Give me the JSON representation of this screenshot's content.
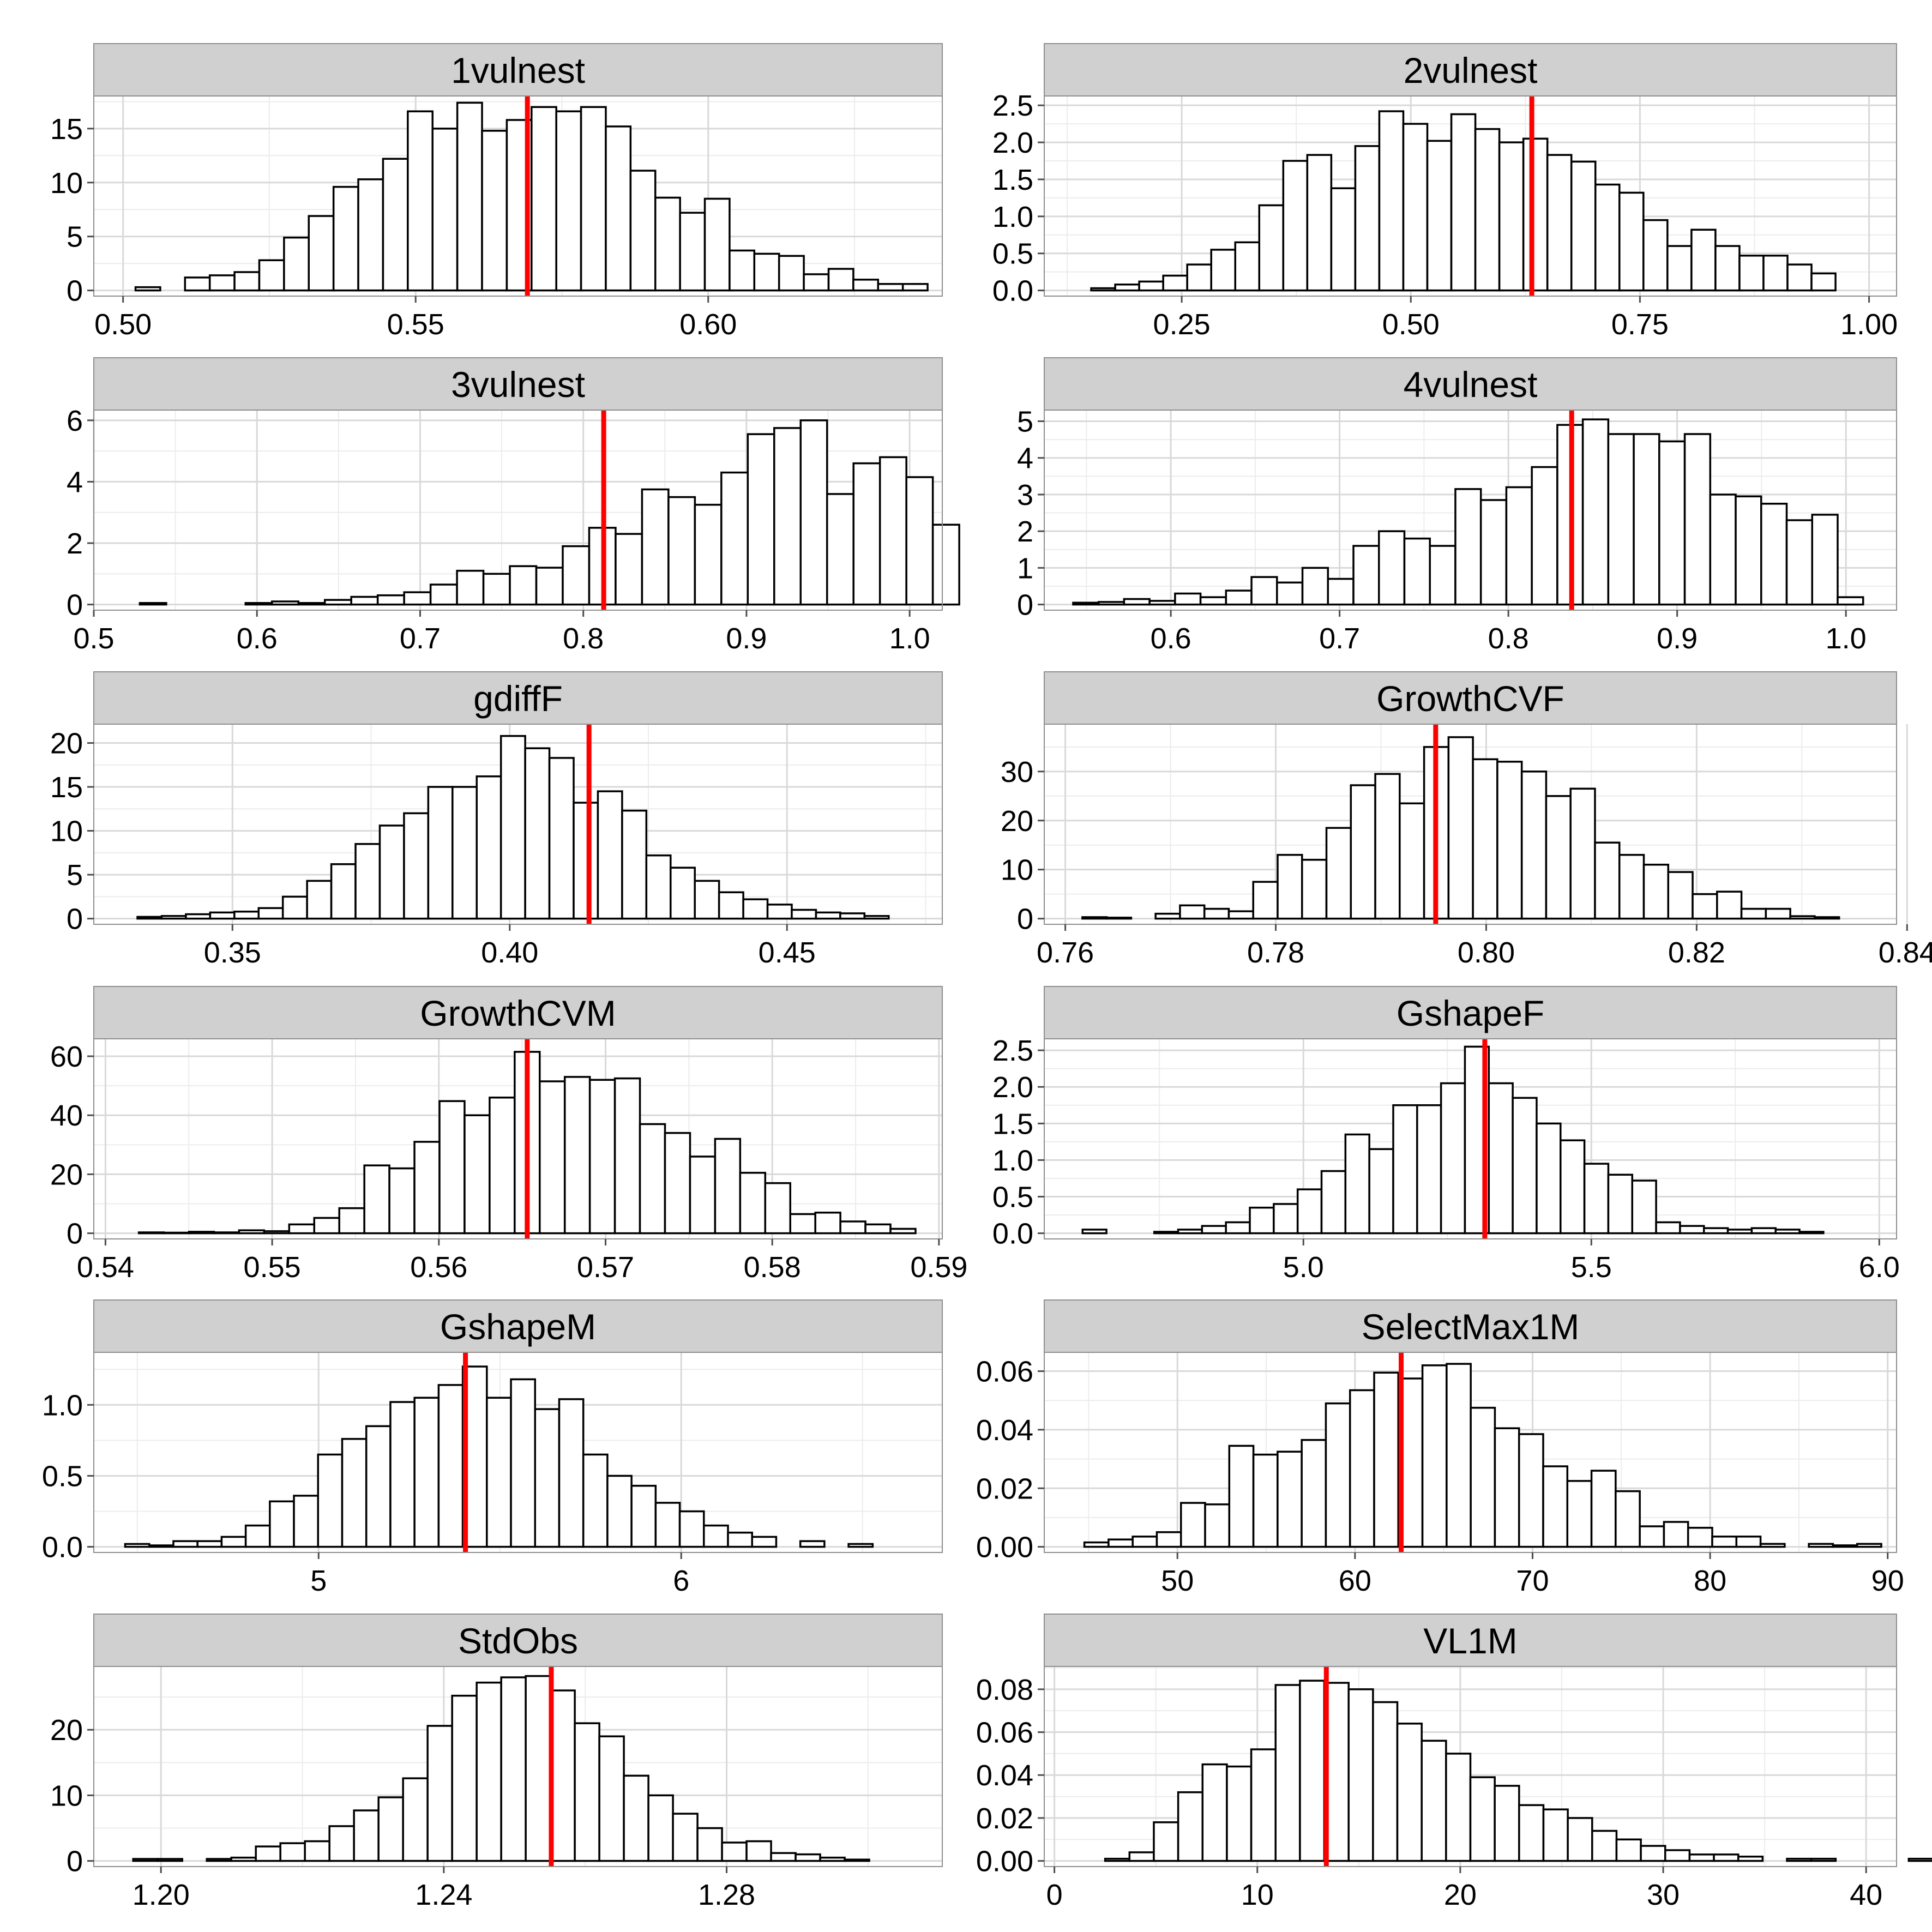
{
  "chart_data": [
    {
      "title": "1vulnest",
      "type": "bar",
      "xlim": [
        0.495,
        0.64
      ],
      "ylim": [
        0,
        17.5
      ],
      "xticks": [
        0.5,
        0.55,
        0.6
      ],
      "yticks": [
        0,
        5,
        10,
        15
      ],
      "xdecimals": 2,
      "ydecimals": 0,
      "bin_start": 0.4979,
      "bin_width": 0.00423,
      "marker": 0.5691,
      "values": [
        0,
        0.3,
        0,
        1.2,
        1.4,
        1.7,
        2.8,
        4.9,
        6.9,
        9.6,
        10.3,
        12.2,
        16.6,
        15.0,
        17.4,
        14.8,
        15.8,
        17.0,
        16.6,
        17.0,
        15.2,
        11.1,
        8.6,
        7.2,
        8.5,
        3.7,
        3.4,
        3.2,
        1.5,
        2.0,
        1.0,
        0.6,
        0.6,
        0
      ]
    },
    {
      "title": "2vulnest",
      "type": "bar",
      "xlim": [
        0.1,
        1.03
      ],
      "ylim": [
        0,
        2.55
      ],
      "xticks": [
        0.25,
        0.5,
        0.75,
        1.0
      ],
      "yticks": [
        0.0,
        0.5,
        1.0,
        1.5,
        2.0,
        2.5
      ],
      "xdecimals": 2,
      "ydecimals": 1,
      "bin_start": 0.125,
      "bin_width": 0.0262,
      "marker": 0.632,
      "values": [
        0,
        0.03,
        0.08,
        0.12,
        0.2,
        0.35,
        0.55,
        0.65,
        1.15,
        1.75,
        1.83,
        1.38,
        1.95,
        2.42,
        2.25,
        2.02,
        2.38,
        2.18,
        2.0,
        2.05,
        1.83,
        1.74,
        1.43,
        1.32,
        0.95,
        0.6,
        0.82,
        0.6,
        0.47,
        0.47,
        0.35,
        0.23,
        0
      ]
    },
    {
      "title": "3vulnest",
      "type": "bar",
      "xlim": [
        0.5,
        1.02
      ],
      "ylim": [
        0,
        6.15
      ],
      "xticks": [
        0.5,
        0.6,
        0.7,
        0.8,
        0.9,
        1.0
      ],
      "yticks": [
        0,
        2,
        4,
        6
      ],
      "xdecimals": 1,
      "ydecimals": 0,
      "bin_start": 0.512,
      "bin_width": 0.0162,
      "marker": 0.8125,
      "values": [
        0,
        0.05,
        0,
        0,
        0,
        0.05,
        0.1,
        0.05,
        0.15,
        0.25,
        0.3,
        0.4,
        0.65,
        1.1,
        1.0,
        1.25,
        1.2,
        1.9,
        2.5,
        2.3,
        3.75,
        3.5,
        3.25,
        4.3,
        5.55,
        5.75,
        6.0,
        3.6,
        4.6,
        4.8,
        4.15,
        2.6,
        0
      ]
    },
    {
      "title": "4vulnest",
      "type": "bar",
      "xlim": [
        0.525,
        1.03
      ],
      "ylim": [
        0,
        5.15
      ],
      "xticks": [
        0.6,
        0.7,
        0.8,
        0.9,
        1.0
      ],
      "yticks": [
        0,
        1,
        2,
        3,
        4,
        5
      ],
      "xdecimals": 1,
      "ydecimals": 0,
      "bin_start": 0.527,
      "bin_width": 0.0151,
      "marker": 0.8375,
      "values": [
        0,
        0.05,
        0.07,
        0.15,
        0.1,
        0.3,
        0.2,
        0.38,
        0.75,
        0.6,
        1.0,
        0.7,
        1.6,
        2.0,
        1.8,
        1.6,
        3.15,
        2.85,
        3.2,
        3.75,
        4.9,
        5.05,
        4.65,
        4.65,
        4.45,
        4.65,
        3.0,
        2.95,
        2.75,
        2.3,
        2.45,
        0.2,
        0
      ]
    },
    {
      "title": "gdiffF",
      "type": "bar",
      "xlim": [
        0.325,
        0.478
      ],
      "ylim": [
        0,
        21.5
      ],
      "xticks": [
        0.35,
        0.4,
        0.45
      ],
      "yticks": [
        0,
        5,
        10,
        15,
        20
      ],
      "xdecimals": 2,
      "ydecimals": 0,
      "bin_start": 0.3285,
      "bin_width": 0.00437,
      "marker": 0.4143,
      "values": [
        0,
        0.2,
        0.3,
        0.5,
        0.7,
        0.8,
        1.2,
        2.5,
        4.3,
        6.2,
        8.5,
        10.6,
        12.0,
        15.0,
        15.0,
        16.2,
        20.8,
        19.4,
        18.3,
        13.2,
        14.5,
        12.3,
        7.2,
        5.8,
        4.3,
        3.0,
        2.2,
        1.6,
        1.0,
        0.7,
        0.6,
        0.3,
        0
      ]
    },
    {
      "title": "GrowthCVF",
      "type": "bar",
      "xlim": [
        0.758,
        0.839
      ],
      "ylim": [
        0,
        38.5
      ],
      "xticks": [
        0.76,
        0.78,
        0.8,
        0.82,
        0.84
      ],
      "yticks": [
        0,
        10,
        20,
        30
      ],
      "xdecimals": 2,
      "ydecimals": 0,
      "bin_start": 0.7593,
      "bin_width": 0.00232,
      "marker": 0.7952,
      "values": [
        0,
        0.3,
        0.2,
        0,
        1.0,
        2.7,
        2.0,
        1.5,
        7.5,
        13.0,
        12.0,
        18.5,
        27.2,
        29.5,
        23.5,
        35.0,
        37.0,
        32.5,
        32.0,
        30.0,
        25.0,
        26.5,
        15.5,
        13.0,
        11.0,
        9.5,
        5.0,
        5.5,
        2.0,
        2.0,
        0.5,
        0.3,
        0
      ]
    },
    {
      "title": "GrowthCVM",
      "type": "bar",
      "xlim": [
        0.5393,
        0.5902
      ],
      "ylim": [
        0,
        64
      ],
      "xticks": [
        0.54,
        0.55,
        0.56,
        0.57,
        0.58,
        0.59
      ],
      "yticks": [
        0,
        20,
        40,
        60
      ],
      "xdecimals": 2,
      "ydecimals": 0,
      "bin_start": 0.5405,
      "bin_width": 0.001503,
      "marker": 0.5653,
      "values": [
        0,
        0.3,
        0.2,
        0.5,
        0.3,
        1.0,
        0.7,
        3.0,
        5.2,
        8.5,
        23.0,
        22.0,
        31.0,
        44.8,
        40.0,
        46.0,
        61.5,
        51.5,
        53.0,
        52.0,
        52.5,
        37.0,
        34.0,
        26.0,
        32.0,
        20.5,
        17.0,
        6.5,
        7.0,
        4.0,
        3.0,
        1.5,
        0
      ]
    },
    {
      "title": "GshapeF",
      "type": "bar",
      "xlim": [
        4.55,
        6.03
      ],
      "ylim": [
        0,
        2.58
      ],
      "xticks": [
        5.0,
        5.5,
        6.0
      ],
      "yticks": [
        0.0,
        0.5,
        1.0,
        1.5,
        2.0,
        2.5
      ],
      "xdecimals": 1,
      "ydecimals": 1,
      "bin_start": 4.575,
      "bin_width": 0.0415,
      "marker": 5.315,
      "values": [
        0,
        0.05,
        0,
        0,
        0.02,
        0.05,
        0.1,
        0.15,
        0.35,
        0.4,
        0.6,
        0.85,
        1.35,
        1.15,
        1.75,
        1.75,
        2.05,
        2.55,
        2.05,
        1.85,
        1.5,
        1.27,
        0.95,
        0.8,
        0.72,
        0.15,
        0.1,
        0.07,
        0.05,
        0.07,
        0.05,
        0.02,
        0
      ]
    },
    {
      "title": "GshapeM",
      "type": "bar",
      "xlim": [
        4.38,
        6.72
      ],
      "ylim": [
        0,
        1.33
      ],
      "xticks": [
        5,
        6
      ],
      "yticks": [
        0.0,
        0.5,
        1.0
      ],
      "xdecimals": 0,
      "ydecimals": 1,
      "bin_start": 4.4,
      "bin_width": 0.0665,
      "marker": 5.405,
      "values": [
        0,
        0.02,
        0.01,
        0.04,
        0.04,
        0.07,
        0.15,
        0.32,
        0.36,
        0.65,
        0.76,
        0.85,
        1.02,
        1.05,
        1.14,
        1.27,
        1.05,
        1.18,
        0.97,
        1.04,
        0.65,
        0.5,
        0.43,
        0.31,
        0.25,
        0.15,
        0.1,
        0.07,
        0,
        0.04,
        0,
        0.02,
        0
      ]
    },
    {
      "title": "SelectMax1M",
      "type": "bar",
      "xlim": [
        42.5,
        90.5
      ],
      "ylim": [
        0,
        0.0645
      ],
      "xticks": [
        50,
        60,
        70,
        80,
        90
      ],
      "yticks": [
        0.0,
        0.02,
        0.04,
        0.06
      ],
      "xdecimals": 0,
      "ydecimals": 2,
      "bin_start": 43.4,
      "bin_width": 1.36,
      "marker": 62.6,
      "values": [
        0,
        0.0015,
        0.0025,
        0.0035,
        0.005,
        0.015,
        0.0145,
        0.0345,
        0.0315,
        0.0325,
        0.0365,
        0.049,
        0.0535,
        0.0595,
        0.0575,
        0.062,
        0.0625,
        0.0475,
        0.0405,
        0.0385,
        0.0275,
        0.0225,
        0.026,
        0.019,
        0.007,
        0.0085,
        0.0065,
        0.0035,
        0.0035,
        0.001,
        0,
        0.001,
        0.0005,
        0.001,
        0
      ]
    },
    {
      "title": "StdObs",
      "type": "bar",
      "xlim": [
        1.1905,
        1.3105
      ],
      "ylim": [
        0,
        28.8
      ],
      "xticks": [
        1.2,
        1.24,
        1.28
      ],
      "yticks": [
        0,
        10,
        20
      ],
      "xdecimals": 2,
      "ydecimals": 0,
      "bin_start": 1.1926,
      "bin_width": 0.00347,
      "marker": 1.2552,
      "values": [
        0,
        0.3,
        0.3,
        0,
        0.3,
        0.5,
        2.2,
        2.7,
        3.0,
        5.3,
        7.7,
        9.7,
        12.6,
        20.6,
        25.2,
        27.2,
        28.0,
        28.2,
        26.0,
        21.0,
        19.0,
        13.0,
        10.0,
        7.2,
        5.0,
        2.8,
        3.0,
        1.2,
        1.0,
        0.5,
        0.2,
        0
      ]
    },
    {
      "title": "VL1M",
      "type": "bar",
      "xlim": [
        -0.5,
        41.5
      ],
      "ylim": [
        0,
        0.088
      ],
      "xticks": [
        0,
        10,
        20,
        30,
        40
      ],
      "yticks": [
        0.0,
        0.02,
        0.04,
        0.06,
        0.08
      ],
      "xdecimals": 0,
      "ydecimals": 2,
      "bin_start": 1.3,
      "bin_width": 1.2,
      "marker": 13.4,
      "values": [
        0,
        0.001,
        0.004,
        0.018,
        0.032,
        0.045,
        0.044,
        0.052,
        0.082,
        0.084,
        0.083,
        0.08,
        0.074,
        0.064,
        0.056,
        0.05,
        0.039,
        0.035,
        0.026,
        0.024,
        0.02,
        0.014,
        0.01,
        0.007,
        0.005,
        0.003,
        0.003,
        0.002,
        0,
        0.001,
        0.001,
        0,
        0,
        0,
        0.001,
        0
      ]
    }
  ]
}
